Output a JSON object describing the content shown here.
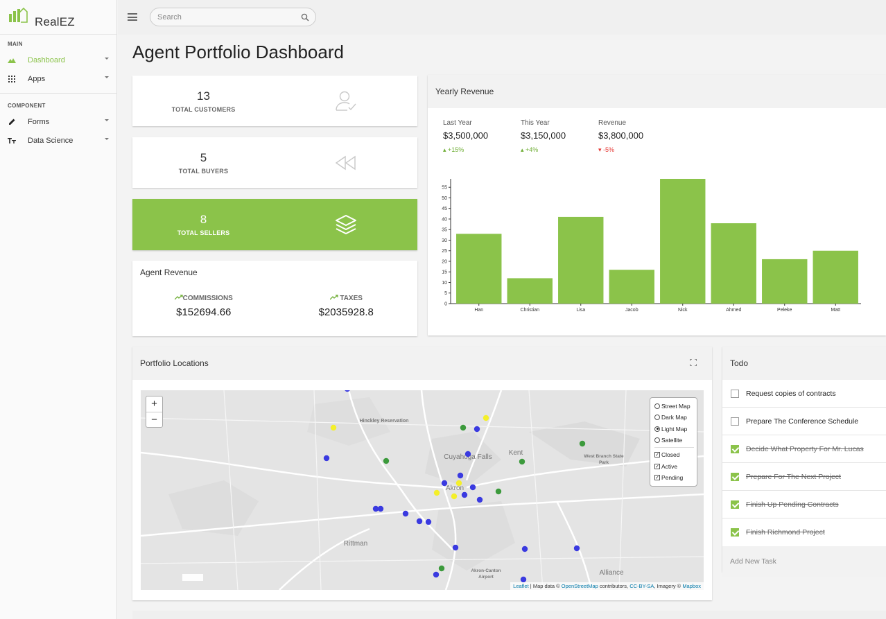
{
  "brand": {
    "name": "RealEZ"
  },
  "search": {
    "placeholder": "Search"
  },
  "sidebar": {
    "main_label": "MAIN",
    "component_label": "COMPONENT",
    "main_items": [
      {
        "label": "Dashboard",
        "icon": "mountain-icon"
      },
      {
        "label": "Apps",
        "icon": "grid-icon"
      }
    ],
    "component_items": [
      {
        "label": "Forms",
        "icon": "pencil-icon"
      },
      {
        "label": "Data Science",
        "icon": "text-size-icon"
      }
    ]
  },
  "page": {
    "title": "Agent Portfolio Dashboard"
  },
  "stats": {
    "customers": {
      "value": "13",
      "label": "TOTAL CUSTOMERS"
    },
    "buyers": {
      "value": "5",
      "label": "TOTAL BUYERS"
    },
    "sellers": {
      "value": "8",
      "label": "TOTAL SELLERS"
    }
  },
  "agent_revenue": {
    "title": "Agent Revenue",
    "commissions_label": "COMMISSIONS",
    "commissions_value": "$152694.66",
    "taxes_label": "TAXES",
    "taxes_value": "$2035928.8"
  },
  "yearly_revenue": {
    "title": "Yearly Revenue",
    "stats": [
      {
        "label": "Last Year",
        "value": "$3,500,000",
        "change": "+15%",
        "direction": "up"
      },
      {
        "label": "This Year",
        "value": "$3,150,000",
        "change": "+4%",
        "direction": "up"
      },
      {
        "label": "Revenue",
        "value": "$3,800,000",
        "change": "-5%",
        "direction": "down"
      }
    ]
  },
  "chart_data": {
    "type": "bar",
    "title": "Yearly Revenue",
    "categories": [
      "Han",
      "Christian",
      "Lisa",
      "Jacob",
      "Nick",
      "Ahmed",
      "Peleke",
      "Matt"
    ],
    "values": [
      33,
      12,
      41,
      16,
      59,
      38,
      21,
      25
    ],
    "yticks": [
      0,
      5,
      10,
      15,
      20,
      25,
      30,
      35,
      40,
      45,
      50,
      55
    ],
    "ylim": [
      0,
      59
    ],
    "xlabel": "",
    "ylabel": "",
    "color": "#8bc34a"
  },
  "map": {
    "title": "Portfolio Locations",
    "zoom_in": "+",
    "zoom_out": "−",
    "base_layers": [
      "Street Map",
      "Dark Map",
      "Light Map",
      "Satellite"
    ],
    "selected_base": "Light Map",
    "overlays": [
      "Closed",
      "Active",
      "Pending"
    ],
    "place_labels": [
      "Hinckley Reservation",
      "Cuyahoga Falls",
      "Kent",
      "West Branch State Park",
      "Akron",
      "Rittman",
      "Akron-Canton Airport",
      "Alliance"
    ],
    "attribution": {
      "leaflet": "Leaflet",
      "sep": " | Map data © ",
      "osm": "OpenStreetMap",
      "contrib": " contributors, ",
      "license": "CC-BY-SA",
      "imagery": ", Imagery © ",
      "mapbox": "Mapbox"
    },
    "marker_colors": {
      "closed": "#3a3ae0",
      "active": "#3c9a3c",
      "pending": "#f4ef2a"
    }
  },
  "todo": {
    "title": "Todo",
    "items": [
      {
        "text": "Request copies of contracts",
        "done": false
      },
      {
        "text": "Prepare The Conference Schedule",
        "done": false
      },
      {
        "text": "Decide What Property For Mr. Lucas",
        "done": true
      },
      {
        "text": "Prepare For The Next Project",
        "done": true
      },
      {
        "text": "Finish Up Pending Contracts",
        "done": true
      },
      {
        "text": "Finish Richmond Project",
        "done": true
      }
    ],
    "add_label": "Add New Task"
  }
}
